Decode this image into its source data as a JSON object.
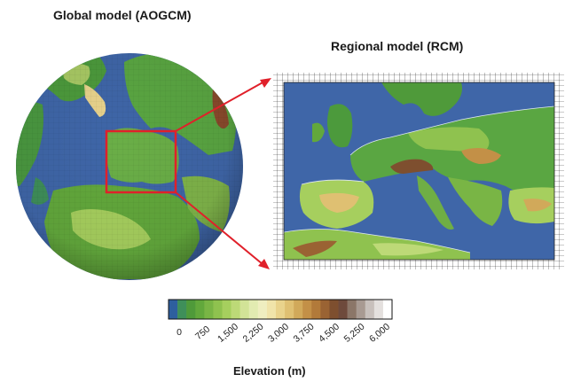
{
  "titles": {
    "global": "Global model (AOGCM)",
    "regional": "Regional model (RCM)"
  },
  "colorbar": {
    "title": "Elevation (m)",
    "tick_labels": [
      "0",
      "750",
      "1,500",
      "2,250",
      "3,000",
      "3,750",
      "4,500",
      "5,250",
      "6,000"
    ],
    "min": 0,
    "max": 6000,
    "colors": [
      "#2e5f9e",
      "#3f8f5a",
      "#4f9a3a",
      "#62a83c",
      "#79b545",
      "#8fc24f",
      "#a6cf5e",
      "#bdd977",
      "#d2e397",
      "#e2ebb1",
      "#efeec0",
      "#f0e4aa",
      "#e9d38c",
      "#dfc072",
      "#d1a95a",
      "#c39047",
      "#b27a3a",
      "#9a6333",
      "#7e4f2f",
      "#6e4a3c",
      "#8b7668",
      "#a89a92",
      "#c8c0bc",
      "#e4e0de",
      "#ffffff"
    ]
  },
  "colors": {
    "ocean": "#3f66a8",
    "highlight_box": "#e0202a",
    "arrow": "#e0202a",
    "grid": "#222222"
  }
}
